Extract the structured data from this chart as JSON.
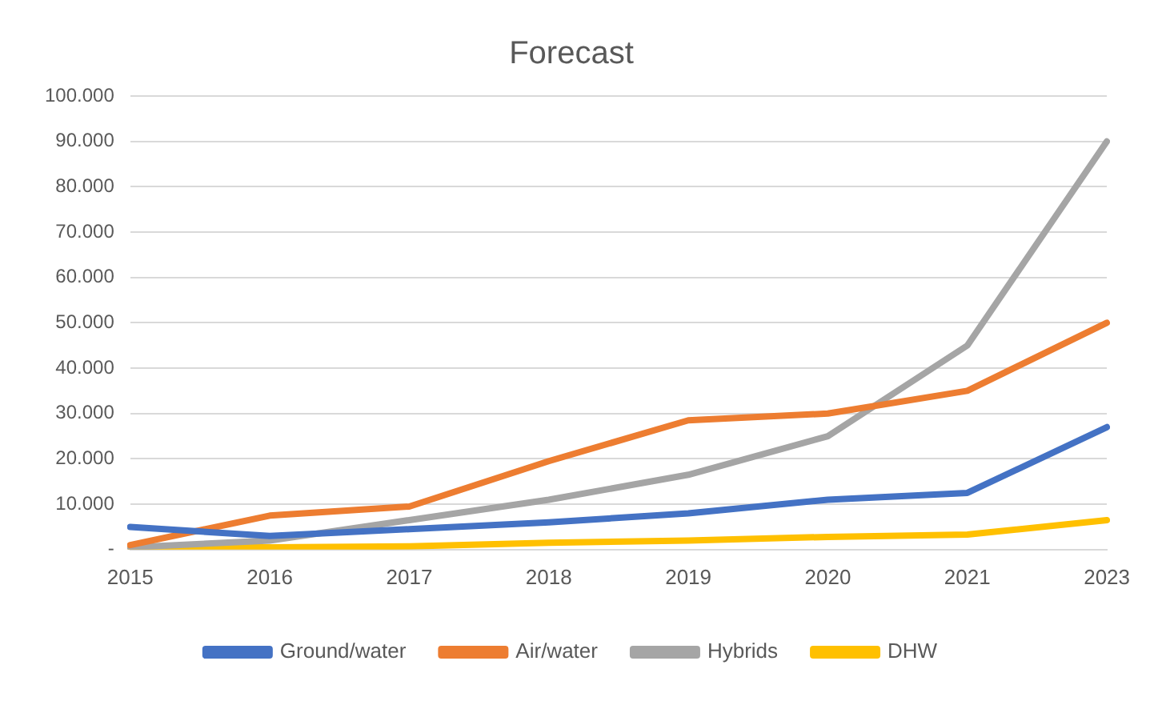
{
  "chart_data": {
    "type": "line",
    "title": "Forecast",
    "categories": [
      "2015",
      "2016",
      "2017",
      "2018",
      "2019",
      "2020",
      "2021",
      "2023"
    ],
    "series": [
      {
        "name": "Ground/water",
        "color": "#4472c4",
        "values": [
          5000,
          3000,
          4500,
          6000,
          8000,
          11000,
          12500,
          27000
        ]
      },
      {
        "name": "Air/water",
        "color": "#ed7d31",
        "values": [
          1000,
          7500,
          9500,
          19500,
          28500,
          30000,
          35000,
          50000
        ]
      },
      {
        "name": "Hybrids",
        "color": "#a5a5a5",
        "values": [
          500,
          2000,
          6500,
          11000,
          16500,
          25000,
          45000,
          90000
        ]
      },
      {
        "name": "DHW",
        "color": "#ffc000",
        "values": [
          500,
          500,
          700,
          1500,
          2000,
          2800,
          3300,
          6500
        ]
      }
    ],
    "ylim": [
      0,
      100000
    ],
    "yticks": [
      {
        "value": 0,
        "label": "-"
      },
      {
        "value": 10000,
        "label": "10.000"
      },
      {
        "value": 20000,
        "label": "20.000"
      },
      {
        "value": 30000,
        "label": "30.000"
      },
      {
        "value": 40000,
        "label": "40.000"
      },
      {
        "value": 50000,
        "label": "50.000"
      },
      {
        "value": 60000,
        "label": "60.000"
      },
      {
        "value": 70000,
        "label": "70.000"
      },
      {
        "value": 80000,
        "label": "80.000"
      },
      {
        "value": 90000,
        "label": "90.000"
      },
      {
        "value": 100000,
        "label": "100.000"
      }
    ],
    "grid": "y",
    "legend": "bottom",
    "marker": "none",
    "line_style": "solid"
  }
}
